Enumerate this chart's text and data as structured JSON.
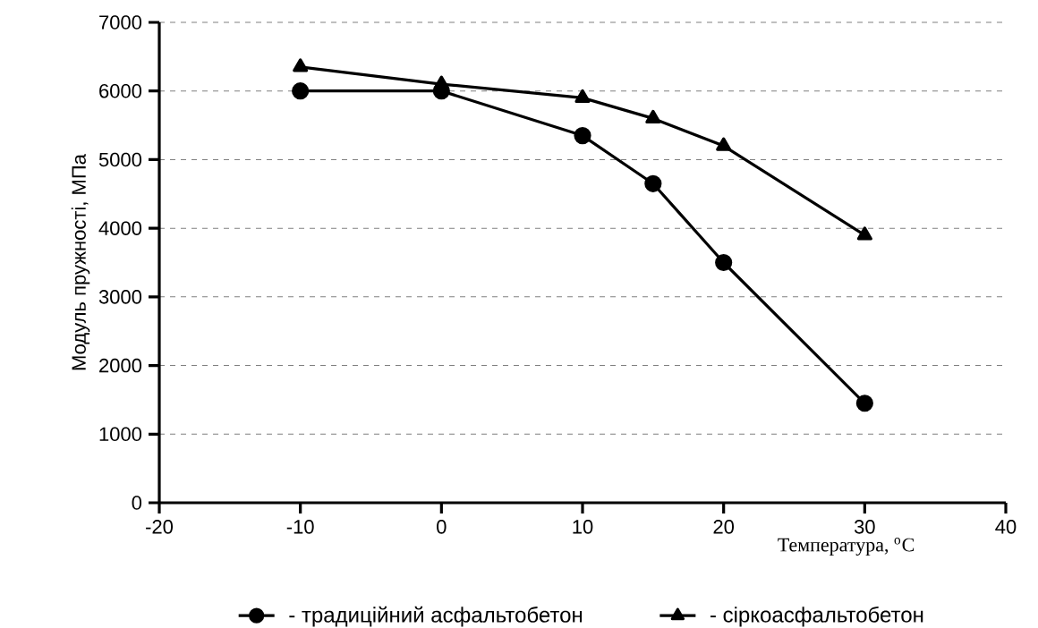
{
  "chart_data": {
    "type": "line",
    "xlabel": "Температура, $^{o}$C",
    "ylabel": "Модуль пружності, МПа",
    "x": [
      -10,
      0,
      10,
      15,
      20,
      30
    ],
    "series": [
      {
        "name": "- традиційний асфальтобетон",
        "color": "#000000",
        "marker": "circle",
        "values": [
          6000,
          6000,
          5350,
          4650,
          3500,
          1450
        ]
      },
      {
        "name": "- сіркоасфальтобетон",
        "color": "#000000",
        "marker": "triangle",
        "values": [
          6350,
          6100,
          5900,
          5600,
          5200,
          3900
        ]
      }
    ],
    "xlim": [
      -20,
      40
    ],
    "xticks": [
      -20,
      -10,
      0,
      10,
      20,
      30,
      40
    ],
    "ylim": [
      0,
      7000
    ],
    "yticks": [
      0,
      1000,
      2000,
      3000,
      4000,
      5000,
      6000,
      7000
    ],
    "grid": "y",
    "legend": "bottom",
    "line_style": "solid"
  }
}
